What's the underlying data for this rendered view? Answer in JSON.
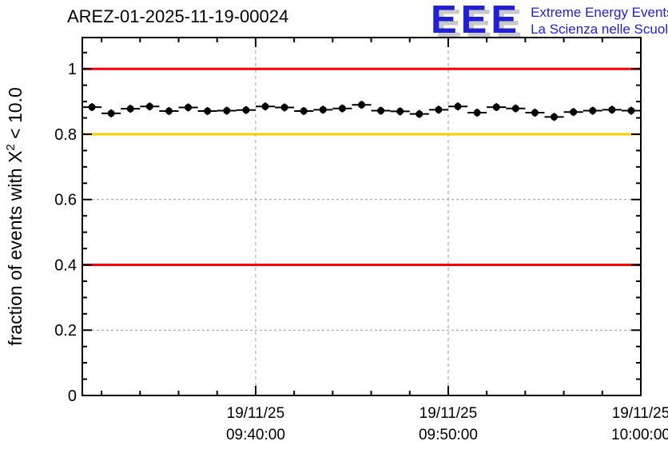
{
  "title": "AREZ-01-2025-11-19-00024",
  "logo": {
    "acronym": "EEE",
    "line1": "Extreme Energy Events",
    "line2": "La Scienza nelle Scuole",
    "blue": "#2121d4",
    "shadow_gray": "#c9c9c9"
  },
  "chart_data": {
    "type": "scatter",
    "title": "AREZ-01-2025-11-19-00024",
    "xlabel": "",
    "ylabel": "fraction of events with X^2 < 10.0",
    "ylabel_base": "fraction of events with X",
    "ylabel_sup": "2",
    "ylabel_tail": " < 10.0",
    "ylim": [
      0,
      1.096
    ],
    "grid": true,
    "grid_color": "#999999",
    "marker_color": "#000000",
    "y_major_ticks": [
      0,
      0.2,
      0.4,
      0.6,
      0.8,
      1.0
    ],
    "y_tick_labels": [
      "0",
      "0.2",
      "0.4",
      "0.6",
      "0.8",
      "1"
    ],
    "y_minor_step": 0.05,
    "x_axis": {
      "start": "09:31:00",
      "end": "10:00:00",
      "minor_step_min": 2,
      "major_ticks": [
        {
          "time": "09:40:00",
          "label_date": "19/11/25",
          "label_time": "09:40:00"
        },
        {
          "time": "09:50:00",
          "label_date": "19/11/25",
          "label_time": "09:50:00"
        },
        {
          "time": "10:00:00",
          "label_date": "19/11/25",
          "label_time": "10:00:00"
        }
      ]
    },
    "reference_lines": [
      {
        "y": 1.0,
        "color": "#ff0000"
      },
      {
        "y": 0.8,
        "color": "#ffcc00"
      },
      {
        "y": 0.4,
        "color": "#ff0000"
      }
    ],
    "series": [
      {
        "name": "fraction of events with X^2 < 10.0",
        "marker": "filled-circle",
        "color": "#000000",
        "x_bin_halfwidth_sec": 30,
        "points": [
          {
            "t": "09:31:30",
            "y": 0.883
          },
          {
            "t": "09:32:30",
            "y": 0.864
          },
          {
            "t": "09:33:30",
            "y": 0.878
          },
          {
            "t": "09:34:30",
            "y": 0.885
          },
          {
            "t": "09:35:30",
            "y": 0.871
          },
          {
            "t": "09:36:30",
            "y": 0.882
          },
          {
            "t": "09:37:30",
            "y": 0.871
          },
          {
            "t": "09:38:30",
            "y": 0.872
          },
          {
            "t": "09:39:30",
            "y": 0.874
          },
          {
            "t": "09:40:30",
            "y": 0.885
          },
          {
            "t": "09:41:30",
            "y": 0.882
          },
          {
            "t": "09:42:30",
            "y": 0.871
          },
          {
            "t": "09:43:30",
            "y": 0.875
          },
          {
            "t": "09:44:30",
            "y": 0.879
          },
          {
            "t": "09:45:30",
            "y": 0.89
          },
          {
            "t": "09:46:30",
            "y": 0.872
          },
          {
            "t": "09:47:30",
            "y": 0.87
          },
          {
            "t": "09:48:30",
            "y": 0.862
          },
          {
            "t": "09:49:30",
            "y": 0.875
          },
          {
            "t": "09:50:30",
            "y": 0.885
          },
          {
            "t": "09:51:30",
            "y": 0.866
          },
          {
            "t": "09:52:30",
            "y": 0.883
          },
          {
            "t": "09:53:30",
            "y": 0.879
          },
          {
            "t": "09:54:30",
            "y": 0.866
          },
          {
            "t": "09:55:30",
            "y": 0.853
          },
          {
            "t": "09:56:30",
            "y": 0.868
          },
          {
            "t": "09:57:30",
            "y": 0.872
          },
          {
            "t": "09:58:30",
            "y": 0.875
          },
          {
            "t": "09:59:30",
            "y": 0.872
          }
        ]
      }
    ]
  }
}
